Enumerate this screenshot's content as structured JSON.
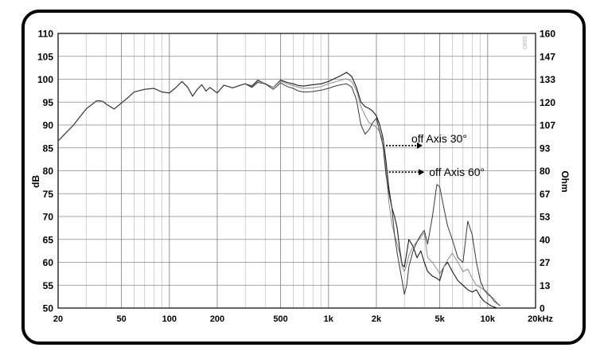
{
  "chart_data": {
    "type": "line",
    "title": "",
    "xlabel": "",
    "ylabel": "dB",
    "ylabel_right": "Ohm",
    "x_scale": "log",
    "xlim": [
      20,
      20000
    ],
    "ylim": [
      50,
      110
    ],
    "ylim_right": [
      0,
      160
    ],
    "x_tick_values": [
      20,
      50,
      100,
      200,
      500,
      1000,
      2000,
      5000,
      10000,
      20000
    ],
    "x_tick_labels": [
      "20",
      "50",
      "100",
      "200",
      "500",
      "1k",
      "2k",
      "5k",
      "10k",
      "20kHz"
    ],
    "y_ticks": [
      "110",
      "105",
      "100",
      "95",
      "90",
      "85",
      "80",
      "75",
      "70",
      "65",
      "60",
      "55",
      "50"
    ],
    "y_right_ticks": [
      "160",
      "147",
      "133",
      "120",
      "107",
      "93",
      "80",
      "67",
      "53",
      "40",
      "27",
      "13",
      "0"
    ],
    "grid": true,
    "watermark": "D895",
    "annotations": [
      {
        "text": "off Axis 30°",
        "x_start": 2300,
        "x_end": 3900,
        "y": 85.5
      },
      {
        "text": "off Axis 60°",
        "x_start": 2400,
        "x_end": 4000,
        "y": 79.7
      }
    ],
    "series": [
      {
        "x": [
          20,
          25,
          30,
          35,
          38,
          40,
          45,
          50,
          55,
          60,
          70,
          80,
          90,
          100,
          110,
          120,
          130,
          140,
          150,
          160,
          170,
          180,
          200,
          220,
          250,
          280,
          300,
          330,
          360,
          400,
          450,
          500,
          550,
          600,
          650,
          700,
          800,
          900,
          1000,
          1100,
          1200,
          1300,
          1400,
          1500,
          1600,
          1700,
          1800,
          1900,
          2000,
          2100,
          2200,
          2300,
          2400,
          2500,
          2600,
          2700,
          2800,
          2900,
          3000,
          3100,
          3200,
          3400,
          3600,
          3800,
          4000,
          4200,
          4500,
          4800,
          5000,
          5300,
          5600,
          6000,
          6500,
          7000,
          7500,
          8000,
          8500,
          9000,
          9500,
          10000,
          10500,
          11000,
          11500,
          12000
        ],
        "values": [
          86.5,
          90.0,
          93.5,
          95.3,
          95.2,
          94.6,
          93.5,
          94.8,
          96.0,
          97.2,
          97.8,
          98.0,
          97.2,
          97.0,
          98.2,
          99.5,
          98.3,
          96.3,
          97.8,
          98.8,
          97.4,
          98.2,
          97.0,
          98.7,
          98.1,
          98.7,
          99.0,
          98.5,
          99.8,
          99.0,
          98.2,
          99.8,
          99.3,
          99.0,
          98.6,
          98.5,
          98.8,
          99.0,
          99.5,
          100.2,
          100.8,
          101.5,
          100.6,
          98.2,
          95.0,
          94.0,
          93.6,
          93.0,
          92.0,
          90.0,
          87.2,
          82.0,
          76.0,
          72.0,
          70.0,
          67.5,
          63.0,
          59.5,
          59.0,
          62.0,
          65.0,
          63.5,
          61.0,
          62.5,
          60.0,
          58.0,
          57.0,
          56.5,
          56.0,
          59.0,
          60.0,
          58.0,
          56.0,
          55.0,
          54.0,
          53.5,
          54.0,
          52.5,
          51.5,
          51.0,
          50.5,
          50.2,
          50.0,
          50.0
        ]
      },
      {
        "x": [
          20,
          25,
          30,
          35,
          38,
          40,
          45,
          50,
          55,
          60,
          70,
          80,
          90,
          100,
          110,
          120,
          130,
          140,
          150,
          160,
          170,
          180,
          200,
          220,
          250,
          280,
          300,
          330,
          360,
          400,
          450,
          500,
          550,
          600,
          650,
          700,
          800,
          900,
          1000,
          1100,
          1200,
          1300,
          1400,
          1500,
          1600,
          1700,
          1800,
          1900,
          2000,
          2100,
          2200,
          2300,
          2400,
          2500,
          2600,
          2700,
          2800,
          2900,
          3000,
          3100,
          3200,
          3400,
          3600,
          3800,
          4000,
          4200,
          4500,
          4800,
          5000,
          5300,
          5600,
          6000,
          6500,
          7000,
          7500,
          8000,
          8500,
          9000,
          9500,
          10000,
          10500,
          11000,
          11500,
          12000
        ],
        "values": [
          86.5,
          90.0,
          93.5,
          95.3,
          95.2,
          94.6,
          93.5,
          94.8,
          96.0,
          97.2,
          97.8,
          98.0,
          97.2,
          97.0,
          98.2,
          99.5,
          98.3,
          96.3,
          97.8,
          98.8,
          97.4,
          98.2,
          97.0,
          98.7,
          98.1,
          98.7,
          99.0,
          98.3,
          99.6,
          99.1,
          98.2,
          99.6,
          99.0,
          98.6,
          98.2,
          98.0,
          98.1,
          98.4,
          99.0,
          99.4,
          99.8,
          100.1,
          99.5,
          97.5,
          94.0,
          92.0,
          90.5,
          90.0,
          89.5,
          88.5,
          86.5,
          80.0,
          73.0,
          68.5,
          66.0,
          64.0,
          62.0,
          59.0,
          58.0,
          59.5,
          61.5,
          63.5,
          64.5,
          65.5,
          66.5,
          61.0,
          60.0,
          58.5,
          57.5,
          59.0,
          60.5,
          62.0,
          60.0,
          58.0,
          58.5,
          56.5,
          55.0,
          54.5,
          54.0,
          53.5,
          52.5,
          52.0,
          51.0,
          50.5
        ]
      },
      {
        "x": [
          20,
          25,
          30,
          35,
          38,
          40,
          45,
          50,
          55,
          60,
          70,
          80,
          90,
          100,
          110,
          120,
          130,
          140,
          150,
          160,
          170,
          180,
          200,
          220,
          250,
          280,
          300,
          330,
          360,
          400,
          450,
          500,
          550,
          600,
          650,
          700,
          800,
          900,
          1000,
          1100,
          1200,
          1300,
          1400,
          1500,
          1600,
          1700,
          1800,
          1900,
          2000,
          2100,
          2200,
          2300,
          2400,
          2500,
          2600,
          2700,
          2800,
          2900,
          3000,
          3100,
          3200,
          3400,
          3600,
          3800,
          4000,
          4200,
          4500,
          4800,
          5000,
          5300,
          5600,
          6000,
          6500,
          7000,
          7500,
          8000,
          8500,
          9000,
          9500,
          10000,
          10500,
          11000,
          11500,
          12000
        ],
        "values": [
          86.5,
          90.0,
          93.5,
          95.3,
          95.2,
          94.6,
          93.5,
          94.8,
          96.0,
          97.2,
          97.8,
          98.0,
          97.2,
          97.0,
          98.2,
          99.5,
          98.3,
          96.3,
          97.8,
          98.8,
          97.4,
          98.2,
          97.0,
          98.7,
          98.1,
          98.7,
          99.0,
          98.2,
          99.3,
          99.0,
          97.8,
          99.2,
          98.4,
          98.0,
          97.4,
          97.2,
          97.3,
          97.6,
          98.0,
          98.5,
          98.8,
          99.0,
          98.3,
          95.5,
          90.0,
          88.0,
          89.0,
          90.5,
          91.5,
          88.5,
          85.5,
          79.0,
          75.0,
          72.0,
          66.0,
          62.0,
          59.0,
          56.0,
          53.0,
          55.0,
          59.0,
          62.5,
          64.5,
          66.0,
          67.0,
          64.0,
          70.0,
          77.0,
          76.5,
          72.0,
          68.0,
          65.0,
          61.0,
          60.0,
          69.0,
          66.0,
          60.0,
          56.0,
          54.0,
          53.0,
          52.5,
          51.5,
          51.0,
          50.5
        ]
      }
    ]
  }
}
